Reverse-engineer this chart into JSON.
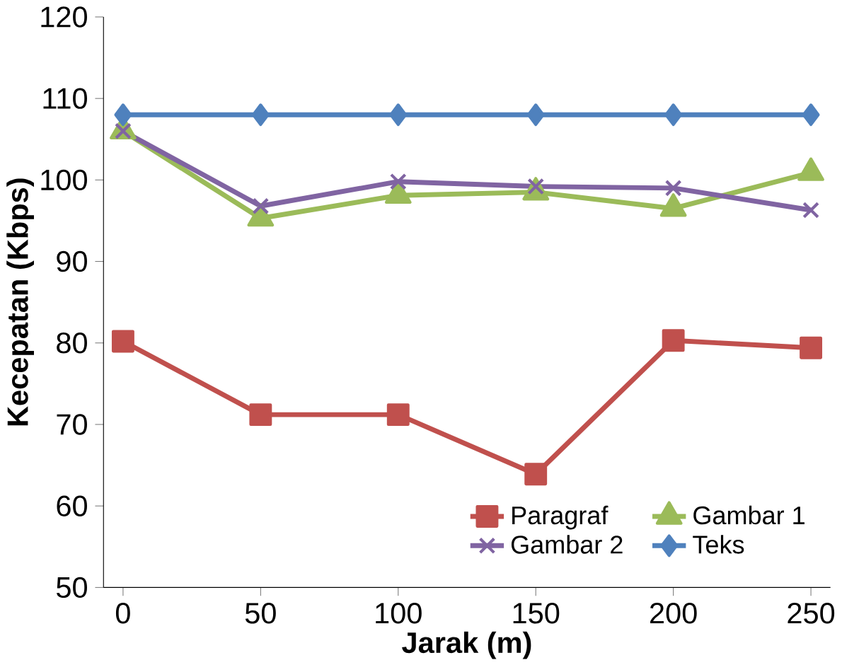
{
  "chart_data": {
    "type": "line",
    "xlabel": "Jarak (m)",
    "ylabel": "Kecepatan (Kbps)",
    "x": [
      0,
      50,
      100,
      150,
      200,
      250
    ],
    "series": [
      {
        "name": "Paragraf",
        "color": "#c0504d",
        "marker": "square",
        "values": [
          80.2,
          71.2,
          71.2,
          63.9,
          80.3,
          79.4
        ]
      },
      {
        "name": "Gambar 1",
        "color": "#9bbb59",
        "marker": "triangle",
        "values": [
          106,
          95.3,
          98.1,
          98.5,
          96.5,
          100.9
        ]
      },
      {
        "name": "Gambar 2",
        "color": "#8064a2",
        "marker": "cross",
        "values": [
          106,
          96.8,
          99.8,
          99.2,
          99,
          96.3
        ]
      },
      {
        "name": "Teks",
        "color": "#4f81bd",
        "marker": "diamond",
        "values": [
          108,
          108,
          108,
          108,
          108,
          108
        ]
      }
    ],
    "xlim": [
      0,
      250
    ],
    "ylim": [
      50,
      120
    ],
    "xticks": [
      0,
      50,
      100,
      150,
      200,
      250
    ],
    "yticks": [
      50,
      60,
      70,
      80,
      90,
      100,
      110,
      120
    ],
    "legend": "bottom right",
    "grid": false,
    "line_style": "solid"
  }
}
